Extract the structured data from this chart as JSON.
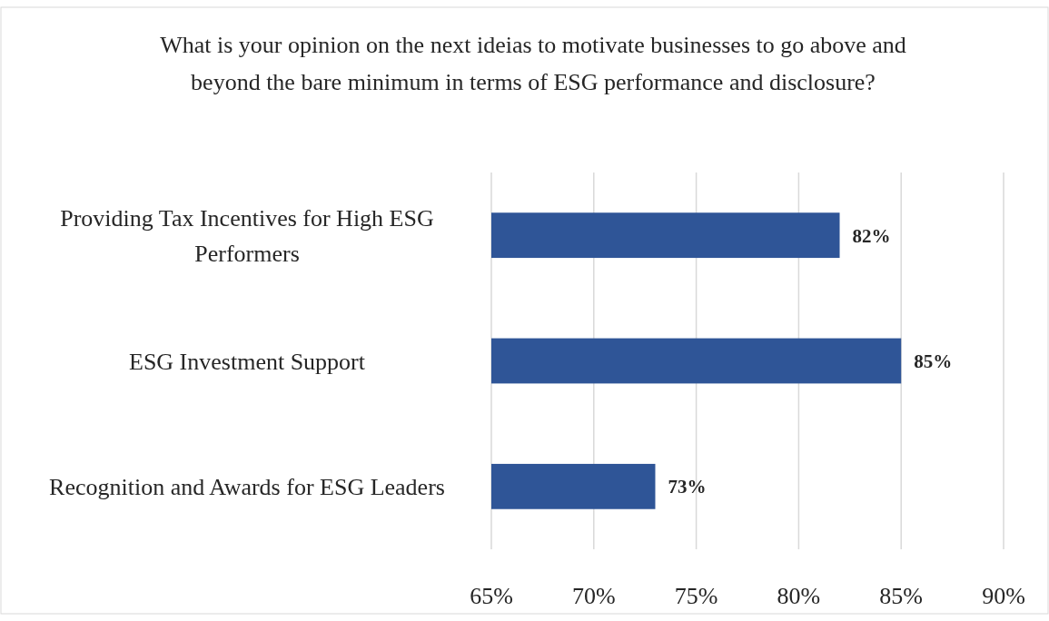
{
  "chart_data": {
    "type": "bar",
    "orientation": "horizontal",
    "title": "What is your opinion on the next ideias to motivate businesses to go above and beyond the bare minimum in terms of ESG performance and disclosure?",
    "categories": [
      "Providing Tax Incentives for High ESG Performers",
      "ESG Investment Support",
      "Recognition and Awards for ESG Leaders"
    ],
    "values": [
      82,
      85,
      73
    ],
    "value_labels": [
      "82%",
      "85%",
      "73%"
    ],
    "color": "#2f5597",
    "xlim": [
      65,
      90
    ],
    "xticks": [
      {
        "value": 65,
        "label": "65%"
      },
      {
        "value": 70,
        "label": "70%"
      },
      {
        "value": 75,
        "label": "75%"
      },
      {
        "value": 80,
        "label": "80%"
      },
      {
        "value": 85,
        "label": "85%"
      },
      {
        "value": 90,
        "label": "90%"
      }
    ],
    "grid": "x"
  }
}
